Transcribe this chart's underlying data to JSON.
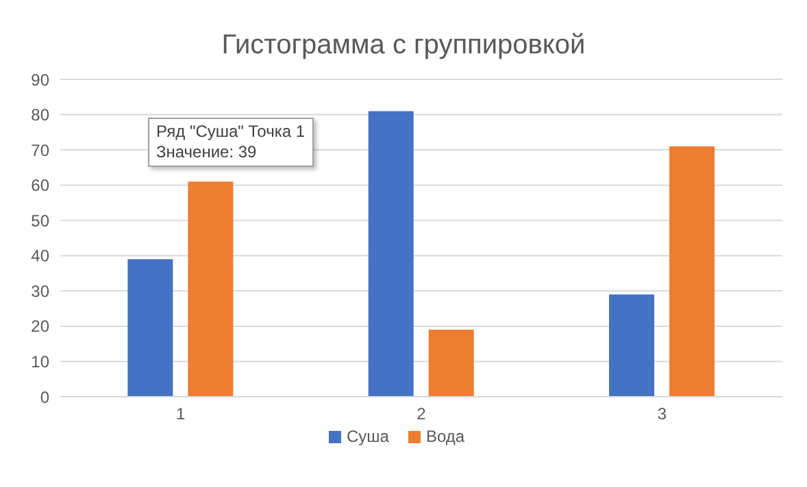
{
  "chart_data": {
    "type": "bar",
    "title": "Гистограмма с группировкой",
    "categories": [
      "1",
      "2",
      "3"
    ],
    "series": [
      {
        "name": "Суша",
        "color": "#4472c4",
        "values": [
          39,
          81,
          29
        ]
      },
      {
        "name": "Вода",
        "color": "#ed7d31",
        "values": [
          61,
          19,
          71
        ]
      }
    ],
    "ylim": [
      0,
      90
    ],
    "yticks": [
      0,
      10,
      20,
      30,
      40,
      50,
      60,
      70,
      80,
      90
    ],
    "grid": "y",
    "legend": "bottom",
    "annotations": [
      "Ряд \"Суша\" Точка 1\nЗначение: 39"
    ]
  }
}
